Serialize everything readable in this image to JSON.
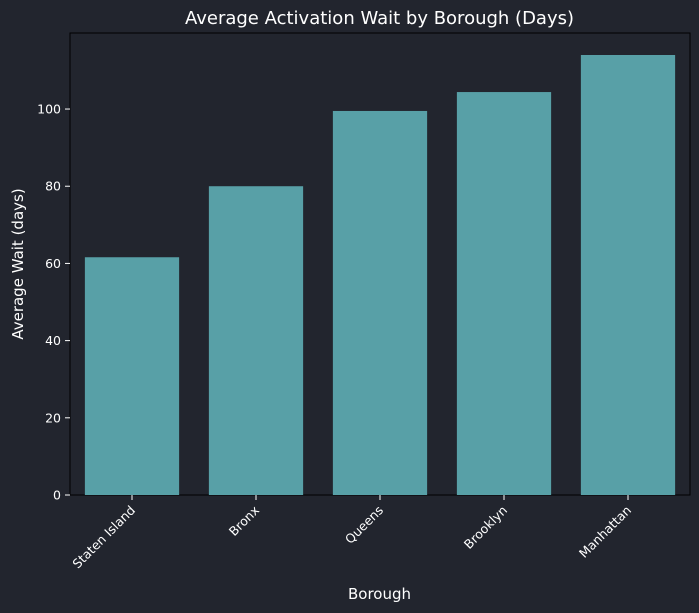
{
  "chart_data": {
    "type": "bar",
    "title": "Average Activation Wait by Borough (Days)",
    "xlabel": "Borough",
    "ylabel": "Average Wait (days)",
    "categories": [
      "Staten Island",
      "Bronx",
      "Queens",
      "Brooklyn",
      "Manhattan"
    ],
    "values": [
      61.6,
      80.0,
      99.5,
      104.4,
      114.0
    ],
    "ylim": [
      0,
      119.7
    ],
    "yticks": [
      0,
      20,
      40,
      60,
      80,
      100
    ],
    "grid": false,
    "legend": "none",
    "bar_color": "#58a0a7",
    "background_color": "#22252e",
    "text_color": "#ffffff"
  }
}
